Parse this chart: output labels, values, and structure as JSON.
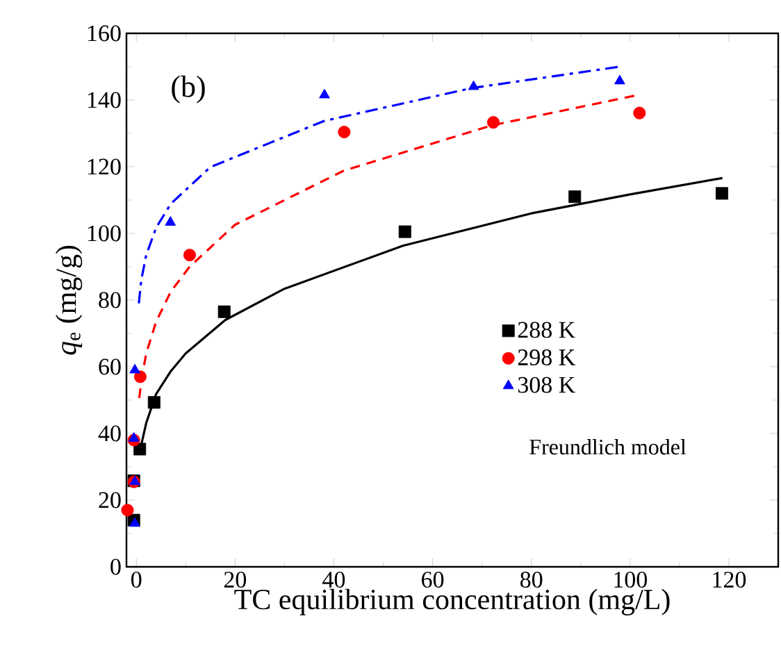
{
  "chart_data": {
    "type": "scatter",
    "xlabel": "TC equilibrium concentration (mg/L)",
    "ylabel": "*q*$_{e}$ (mg/g)",
    "xlim": [
      -2,
      130
    ],
    "ylim": [
      0,
      160
    ],
    "xticks": [
      0,
      20,
      40,
      60,
      80,
      100,
      120
    ],
    "yticks": [
      0,
      20,
      40,
      60,
      80,
      100,
      120,
      140,
      160
    ],
    "legend": "right",
    "grid": false,
    "annotations": [
      "(b)",
      "Freundlich model"
    ],
    "series": [
      {
        "name": "288 K",
        "marker": "square",
        "color": "#000000",
        "x": [
          -0.5,
          -0.5,
          0.7,
          3.6,
          17.8,
          54.4,
          88.8,
          118.6
        ],
        "values": [
          14,
          25.8,
          35.3,
          49.3,
          76.5,
          100.5,
          111,
          112
        ]
      },
      {
        "name": "298 K",
        "marker": "circle",
        "color": "#ff0000",
        "x": [
          -1.8,
          -0.5,
          -0.5,
          0.8,
          10.8,
          42.1,
          72.3,
          101.9
        ],
        "values": [
          17,
          25.5,
          38,
          57,
          93.5,
          130.4,
          133.3,
          136.1
        ]
      },
      {
        "name": "308 K",
        "marker": "triangle",
        "color": "#0000ff",
        "x": [
          -0.3,
          -0.3,
          -0.5,
          -0.3,
          6.9,
          38.1,
          68.3,
          97.9
        ],
        "values": [
          13,
          25.5,
          38.5,
          59,
          103.3,
          141.5,
          144,
          145.7
        ]
      },
      {
        "type": "line",
        "line_style": "solid",
        "color": "#000000",
        "x": [
          1,
          2,
          4,
          7,
          10,
          18,
          30,
          54,
          80,
          100,
          118.7
        ],
        "values": [
          36.6,
          43.1,
          51.8,
          58.7,
          64.0,
          74.0,
          83.4,
          96.3,
          106.0,
          111.7,
          116.6
        ]
      },
      {
        "type": "line",
        "line_style": "dashed",
        "color": "#ff0000",
        "x": [
          0.6,
          1,
          2,
          4,
          7,
          10.8,
          20,
          42,
          72,
          101.6
        ],
        "values": [
          50.6,
          55.7,
          64.0,
          73.5,
          82.6,
          90.0,
          102.6,
          118.8,
          132.4,
          141.5
        ]
      },
      {
        "type": "line",
        "line_style": "dashdot",
        "color": "#0000ff",
        "x": [
          0.5,
          1,
          2,
          4,
          7,
          15,
          38,
          68,
          97.9
        ],
        "values": [
          79.0,
          86.0,
          93.5,
          101.7,
          108.9,
          119.9,
          133.7,
          143.6,
          150.0
        ]
      }
    ]
  }
}
